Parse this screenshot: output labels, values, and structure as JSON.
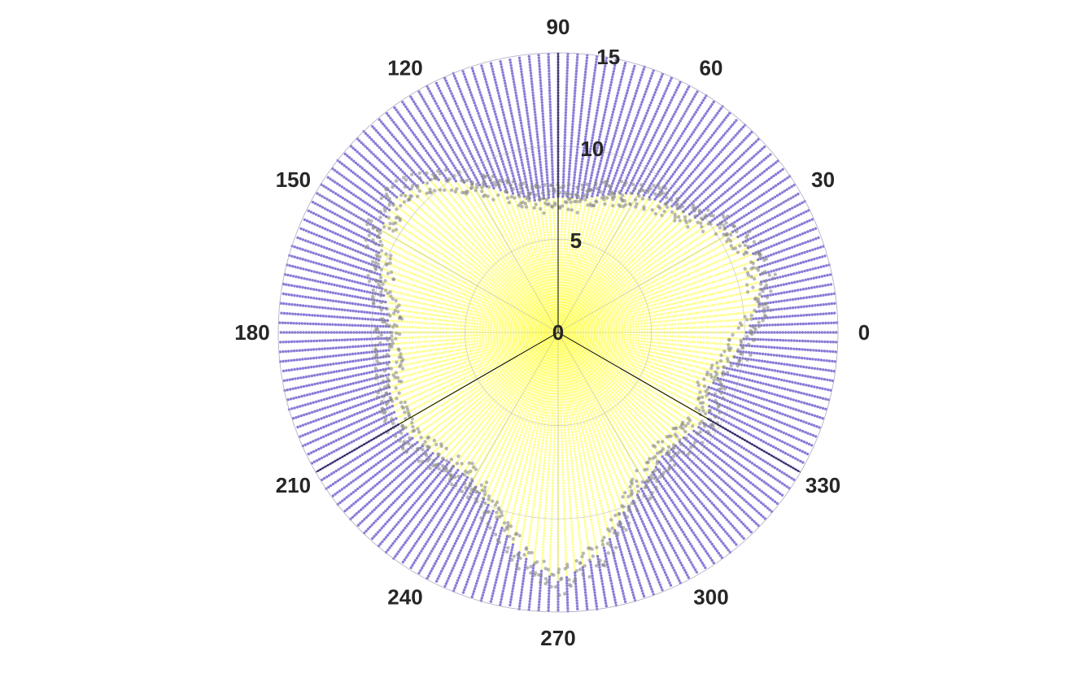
{
  "chart_data": {
    "type": "scatter",
    "subtype": "polar",
    "title": "",
    "theta_unit": "degrees",
    "theta_tick_labels": [
      "0",
      "30",
      "60",
      "90",
      "120",
      "150",
      "180",
      "210",
      "240",
      "270",
      "300",
      "330"
    ],
    "r_tick_labels": [
      "0",
      "5",
      "10",
      "15"
    ],
    "r_max": 15,
    "grid": true,
    "spokes": {
      "angles": [
        90,
        210,
        330
      ],
      "color": "#000000"
    },
    "series": [
      {
        "color": "#6a5acd",
        "r_from": "boundary",
        "r_to": 15,
        "angle_step_deg": 2
      },
      {
        "color": "#ffff66",
        "r_from": 0,
        "r_to": "boundary",
        "angle_step_deg": 2,
        "boundary_profile": {
          "theta": [
            0,
            10,
            20,
            30,
            40,
            50,
            60,
            70,
            80,
            90,
            100,
            110,
            120,
            130,
            140,
            150,
            160,
            170,
            180,
            190,
            200,
            210,
            220,
            230,
            240,
            250,
            260,
            270,
            280,
            290,
            300,
            310,
            320,
            330,
            340,
            350,
            360
          ],
          "r": [
            10.1,
            11.1,
            11.4,
            10.8,
            9.6,
            9.0,
            8.6,
            7.9,
            7.3,
            7.3,
            7.2,
            8.0,
            9.2,
            10.7,
            11.3,
            11.0,
            10.2,
            9.4,
            9.0,
            9.2,
            9.6,
            9.9,
            9.5,
            9.1,
            9.2,
            10.2,
            12.0,
            13.4,
            12.2,
            10.3,
            9.3,
            8.7,
            8.8,
            9.3,
            8.6,
            9.4,
            10.1
          ]
        }
      }
    ],
    "boundary_markers": {
      "color": "#8a8a8a"
    }
  }
}
